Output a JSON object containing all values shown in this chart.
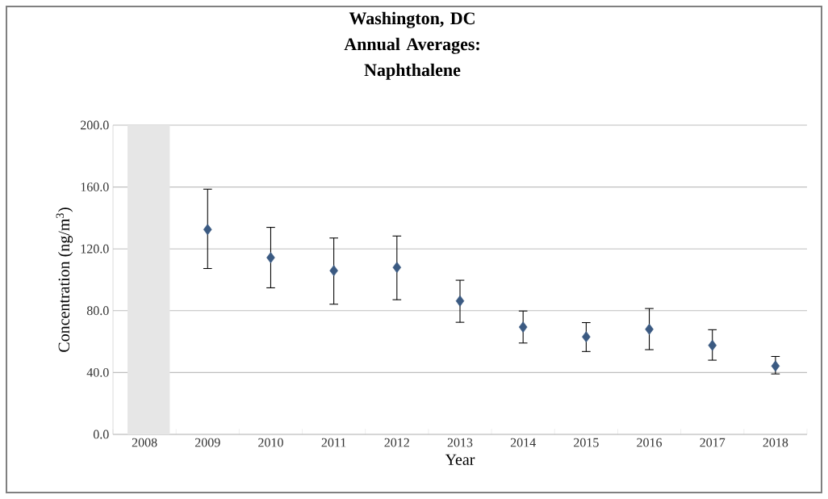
{
  "chart_data": {
    "type": "scatter",
    "title": "Washington, DC Annual Averages: Naphthalene",
    "xlabel": "Year",
    "ylabel": "Concentration (ng/m$^{3}$)",
    "categories": [
      "2008",
      "2009",
      "2010",
      "2011",
      "2012",
      "2013",
      "2014",
      "2015",
      "2016",
      "2017",
      "2018"
    ],
    "values": [
      null,
      132.5,
      114.3,
      105.9,
      108.0,
      86.3,
      69.4,
      63.1,
      68.0,
      57.6,
      44.2
    ],
    "errors": [
      null,
      [
        107.3,
        158.6
      ],
      [
        94.8,
        133.9
      ],
      [
        84.2,
        127.0
      ],
      [
        87.1,
        128.3
      ],
      [
        72.5,
        99.7
      ],
      [
        59.1,
        79.8
      ],
      [
        53.6,
        72.3
      ],
      [
        54.8,
        81.4
      ],
      [
        48.0,
        67.7
      ],
      [
        39.1,
        50.4
      ]
    ],
    "color": "#3b5a82",
    "marker": "diamond",
    "ylim": [
      0,
      200
    ],
    "yticks": [
      {
        "value": 0,
        "label": "0.0"
      },
      {
        "value": 40,
        "label": "40.0"
      },
      {
        "value": 80,
        "label": "80.0"
      },
      {
        "value": 120,
        "label": "120.0"
      },
      {
        "value": 160,
        "label": "160.0"
      },
      {
        "value": 200,
        "label": "200.0"
      }
    ],
    "bands": [
      {
        "axis": "x",
        "from": "2008",
        "to": "2008",
        "color": "#e6e6e6"
      }
    ],
    "grid": "y"
  }
}
